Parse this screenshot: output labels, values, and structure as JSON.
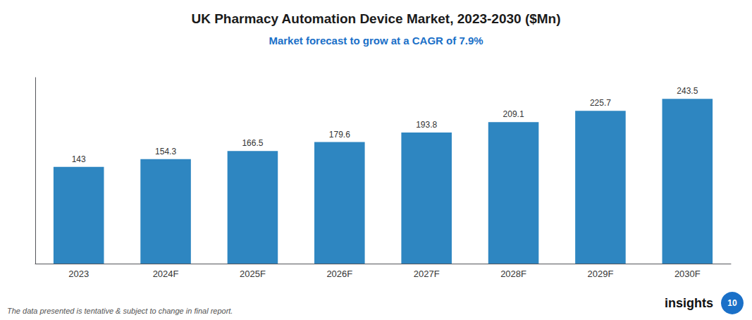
{
  "chart_data": {
    "type": "bar",
    "title": "UK Pharmacy Automation Device Market, 2023-2030 ($Mn)",
    "subtitle": "Market forecast to grow at a CAGR of 7.9%",
    "categories": [
      "2023",
      "2024F",
      "2025F",
      "2026F",
      "2027F",
      "2028F",
      "2029F",
      "2030F"
    ],
    "values": [
      143.0,
      154.3,
      166.5,
      179.6,
      193.8,
      209.1,
      225.7,
      243.5
    ],
    "color": "#2E86C1",
    "ylim": [
      0,
      275
    ],
    "grid": false,
    "data_labels": true,
    "tick_labels": "x",
    "annotations": [
      "The data presented is tentative & subject to change in final report.",
      "insights",
      "10"
    ]
  }
}
